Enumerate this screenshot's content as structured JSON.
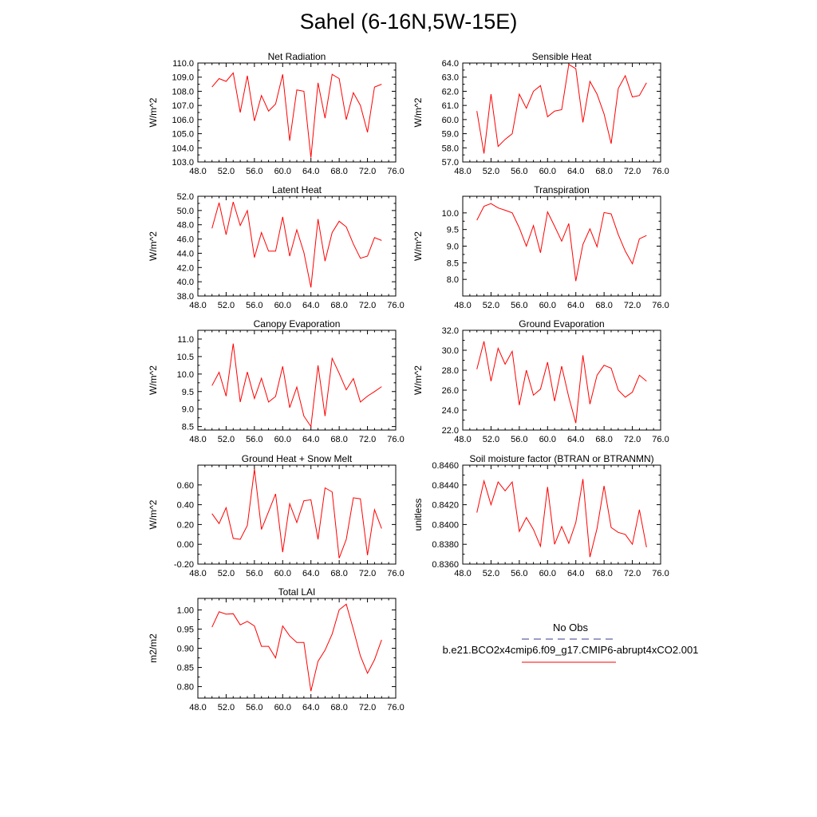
{
  "title": "Sahel (6-16N,5W-15E)",
  "legend": {
    "obs_label": "No Obs",
    "run_label": "b.e21.BCO2x4cmip6.f09_g17.CMIP6-abrupt4xCO2.001",
    "obs_color": "#3a3a8c",
    "run_color": "#ff0000"
  },
  "chart_data": [
    {
      "type": "line",
      "title": "Net Radiation",
      "ylabel": "W/m^2",
      "xlim": [
        48,
        76
      ],
      "ylim": [
        103,
        110
      ],
      "yticks": [
        "103.0",
        "104.0",
        "105.0",
        "106.0",
        "107.0",
        "108.0",
        "109.0",
        "110.0"
      ],
      "xticks": [
        "48.0",
        "52.0",
        "56.0",
        "60.0",
        "64.0",
        "68.0",
        "72.0",
        "76.0"
      ],
      "x": [
        50,
        51,
        52,
        53,
        54,
        55,
        56,
        57,
        58,
        59,
        60,
        61,
        62,
        63,
        64,
        65,
        66,
        67,
        68,
        69,
        70,
        71,
        72,
        73,
        74
      ],
      "series": [
        {
          "name": "b.e21.BCO2x4cmip6.f09_g17.CMIP6-abrupt4xCO2.001",
          "values": [
            108.3,
            108.9,
            108.7,
            109.3,
            106.5,
            109.1,
            105.9,
            107.7,
            106.6,
            107.1,
            109.2,
            104.5,
            108.1,
            108.0,
            103.3,
            108.6,
            106.1,
            109.2,
            108.9,
            106.0,
            107.9,
            107.0,
            105.1,
            108.3,
            108.5
          ]
        }
      ]
    },
    {
      "type": "line",
      "title": "Sensible Heat",
      "ylabel": "W/m^2",
      "xlim": [
        48,
        76
      ],
      "ylim": [
        57,
        64
      ],
      "yticks": [
        "57.0",
        "58.0",
        "59.0",
        "60.0",
        "61.0",
        "62.0",
        "63.0",
        "64.0"
      ],
      "xticks": [
        "48.0",
        "52.0",
        "56.0",
        "60.0",
        "64.0",
        "68.0",
        "72.0",
        "76.0"
      ],
      "x": [
        50,
        51,
        52,
        53,
        54,
        55,
        56,
        57,
        58,
        59,
        60,
        61,
        62,
        63,
        64,
        65,
        66,
        67,
        68,
        69,
        70,
        71,
        72,
        73,
        74
      ],
      "series": [
        {
          "name": "b.e21.BCO2x4cmip6.f09_g17.CMIP6-abrupt4xCO2.001",
          "values": [
            60.6,
            57.6,
            61.8,
            58.1,
            58.6,
            59.0,
            61.8,
            60.8,
            62.0,
            62.4,
            60.2,
            60.6,
            60.7,
            63.9,
            63.6,
            59.8,
            62.7,
            61.8,
            60.4,
            58.3,
            62.2,
            63.1,
            61.6,
            61.7,
            62.6
          ]
        }
      ]
    },
    {
      "type": "line",
      "title": "Latent Heat",
      "ylabel": "W/m^2",
      "xlim": [
        48,
        76
      ],
      "ylim": [
        38,
        52
      ],
      "yticks": [
        "38.0",
        "40.0",
        "42.0",
        "44.0",
        "46.0",
        "48.0",
        "50.0",
        "52.0"
      ],
      "xticks": [
        "48.0",
        "52.0",
        "56.0",
        "60.0",
        "64.0",
        "68.0",
        "72.0",
        "76.0"
      ],
      "x": [
        50,
        51,
        52,
        53,
        54,
        55,
        56,
        57,
        58,
        59,
        60,
        61,
        62,
        63,
        64,
        65,
        66,
        67,
        68,
        69,
        70,
        71,
        72,
        73,
        74
      ],
      "series": [
        {
          "name": "b.e21.BCO2x4cmip6.f09_g17.CMIP6-abrupt4xCO2.001",
          "values": [
            47.5,
            51.1,
            46.6,
            51.2,
            47.9,
            50.0,
            43.4,
            46.9,
            44.3,
            44.3,
            49.1,
            43.6,
            47.3,
            44.1,
            39.2,
            48.8,
            42.9,
            46.9,
            48.5,
            47.7,
            45.3,
            43.3,
            43.6,
            46.2,
            45.8
          ]
        }
      ]
    },
    {
      "type": "line",
      "title": "Transpiration",
      "ylabel": "W/m^2",
      "xlim": [
        48,
        76
      ],
      "ylim": [
        7.5,
        10.5
      ],
      "yticks": [
        "8.0",
        "8.5",
        "9.0",
        "9.5",
        "10.0"
      ],
      "yticks_at": [
        8.0,
        8.5,
        9.0,
        9.5,
        10.0
      ],
      "xticks": [
        "48.0",
        "52.0",
        "56.0",
        "60.0",
        "64.0",
        "68.0",
        "72.0",
        "76.0"
      ],
      "x": [
        50,
        51,
        52,
        53,
        54,
        55,
        56,
        57,
        58,
        59,
        60,
        61,
        62,
        63,
        64,
        65,
        66,
        67,
        68,
        69,
        70,
        71,
        72,
        73,
        74
      ],
      "series": [
        {
          "name": "b.e21.BCO2x4cmip6.f09_g17.CMIP6-abrupt4xCO2.001",
          "values": [
            9.78,
            10.2,
            10.28,
            10.15,
            10.08,
            10.0,
            9.55,
            9.0,
            9.62,
            8.8,
            10.03,
            9.6,
            9.15,
            9.68,
            7.95,
            9.05,
            9.52,
            8.98,
            10.01,
            9.97,
            9.35,
            8.85,
            8.47,
            9.22,
            9.32
          ]
        }
      ]
    },
    {
      "type": "line",
      "title": "Canopy Evaporation",
      "ylabel": "W/m^2",
      "xlim": [
        48,
        76
      ],
      "ylim": [
        8.4,
        11.25
      ],
      "yticks": [
        "8.5",
        "9.0",
        "9.5",
        "10.0",
        "10.5",
        "11.0"
      ],
      "yticks_at": [
        8.5,
        9.0,
        9.5,
        10.0,
        10.5,
        11.0
      ],
      "xticks": [
        "48.0",
        "52.0",
        "56.0",
        "60.0",
        "64.0",
        "68.0",
        "72.0",
        "76.0"
      ],
      "x": [
        50,
        51,
        52,
        53,
        54,
        55,
        56,
        57,
        58,
        59,
        60,
        61,
        62,
        63,
        64,
        65,
        66,
        67,
        68,
        69,
        70,
        71,
        72,
        73,
        74
      ],
      "series": [
        {
          "name": "b.e21.BCO2x4cmip6.f09_g17.CMIP6-abrupt4xCO2.001",
          "values": [
            9.67,
            10.05,
            9.37,
            10.87,
            9.2,
            10.06,
            9.3,
            9.88,
            9.2,
            9.36,
            10.22,
            9.04,
            9.63,
            8.8,
            8.5,
            10.25,
            8.8,
            10.45,
            10.02,
            9.55,
            9.87,
            9.2,
            9.37,
            9.5,
            9.64
          ]
        }
      ]
    },
    {
      "type": "line",
      "title": "Ground Evaporation",
      "ylabel": "W/m^2",
      "xlim": [
        48,
        76
      ],
      "ylim": [
        22,
        32
      ],
      "yticks": [
        "22.0",
        "24.0",
        "26.0",
        "28.0",
        "30.0",
        "32.0"
      ],
      "xticks": [
        "48.0",
        "52.0",
        "56.0",
        "60.0",
        "64.0",
        "68.0",
        "72.0",
        "76.0"
      ],
      "x": [
        50,
        51,
        52,
        53,
        54,
        55,
        56,
        57,
        58,
        59,
        60,
        61,
        62,
        63,
        64,
        65,
        66,
        67,
        68,
        69,
        70,
        71,
        72,
        73,
        74
      ],
      "series": [
        {
          "name": "b.e21.BCO2x4cmip6.f09_g17.CMIP6-abrupt4xCO2.001",
          "values": [
            28.1,
            30.9,
            26.9,
            30.2,
            28.6,
            29.9,
            24.5,
            28.0,
            25.5,
            26.1,
            28.8,
            24.9,
            28.4,
            25.3,
            22.7,
            29.5,
            24.6,
            27.5,
            28.5,
            28.2,
            26.0,
            25.3,
            25.8,
            27.5,
            26.9
          ]
        }
      ]
    },
    {
      "type": "line",
      "title": "Ground Heat + Snow Melt",
      "ylabel": "W/m^2",
      "xlim": [
        48,
        76
      ],
      "ylim": [
        -0.2,
        0.8
      ],
      "yticks": [
        "-0.20",
        "0.00",
        "0.20",
        "0.40",
        "0.60"
      ],
      "yticks_at": [
        -0.2,
        0.0,
        0.2,
        0.4,
        0.6
      ],
      "xticks": [
        "48.0",
        "52.0",
        "56.0",
        "60.0",
        "64.0",
        "68.0",
        "72.0",
        "76.0"
      ],
      "x": [
        50,
        51,
        52,
        53,
        54,
        55,
        56,
        57,
        58,
        59,
        60,
        61,
        62,
        63,
        64,
        65,
        66,
        67,
        68,
        69,
        70,
        71,
        72,
        73,
        74
      ],
      "series": [
        {
          "name": "b.e21.BCO2x4cmip6.f09_g17.CMIP6-abrupt4xCO2.001",
          "values": [
            0.31,
            0.21,
            0.37,
            0.06,
            0.05,
            0.19,
            0.76,
            0.15,
            0.33,
            0.51,
            -0.08,
            0.41,
            0.22,
            0.44,
            0.45,
            0.05,
            0.57,
            0.53,
            -0.14,
            0.05,
            0.47,
            0.46,
            -0.11,
            0.35,
            0.16
          ]
        }
      ]
    },
    {
      "type": "line",
      "title": "Soil moisture factor (BTRAN or BTRANMN)",
      "ylabel": "unitless",
      "xlim": [
        48,
        76
      ],
      "ylim": [
        0.836,
        0.846
      ],
      "yticks": [
        "0.8360",
        "0.8380",
        "0.8400",
        "0.8420",
        "0.8440",
        "0.8460"
      ],
      "xticks": [
        "48.0",
        "52.0",
        "56.0",
        "60.0",
        "64.0",
        "68.0",
        "72.0",
        "76.0"
      ],
      "x": [
        50,
        51,
        52,
        53,
        54,
        55,
        56,
        57,
        58,
        59,
        60,
        61,
        62,
        63,
        64,
        65,
        66,
        67,
        68,
        69,
        70,
        71,
        72,
        73,
        74
      ],
      "series": [
        {
          "name": "b.e21.BCO2x4cmip6.f09_g17.CMIP6-abrupt4xCO2.001",
          "values": [
            0.8412,
            0.8444,
            0.842,
            0.8443,
            0.8434,
            0.8443,
            0.8393,
            0.8407,
            0.8395,
            0.8378,
            0.8438,
            0.838,
            0.8398,
            0.8381,
            0.8402,
            0.8446,
            0.8367,
            0.8396,
            0.8439,
            0.8397,
            0.8392,
            0.839,
            0.838,
            0.8415,
            0.8377
          ]
        }
      ]
    },
    {
      "type": "line",
      "title": "Total LAI",
      "ylabel": "m2/m2",
      "xlim": [
        48,
        76
      ],
      "ylim": [
        0.77,
        1.03
      ],
      "yticks": [
        "0.80",
        "0.85",
        "0.90",
        "0.95",
        "1.00"
      ],
      "yticks_at": [
        0.8,
        0.85,
        0.9,
        0.95,
        1.0
      ],
      "xticks": [
        "48.0",
        "52.0",
        "56.0",
        "60.0",
        "64.0",
        "68.0",
        "72.0",
        "76.0"
      ],
      "x": [
        50,
        51,
        52,
        53,
        54,
        55,
        56,
        57,
        58,
        59,
        60,
        61,
        62,
        63,
        64,
        65,
        66,
        67,
        68,
        69,
        70,
        71,
        72,
        73,
        74
      ],
      "series": [
        {
          "name": "b.e21.BCO2x4cmip6.f09_g17.CMIP6-abrupt4xCO2.001",
          "values": [
            0.955,
            0.995,
            0.989,
            0.99,
            0.961,
            0.97,
            0.958,
            0.905,
            0.905,
            0.875,
            0.958,
            0.932,
            0.915,
            0.915,
            0.788,
            0.866,
            0.895,
            0.937,
            1.0,
            1.015,
            0.949,
            0.88,
            0.835,
            0.87,
            0.922
          ]
        }
      ]
    }
  ]
}
